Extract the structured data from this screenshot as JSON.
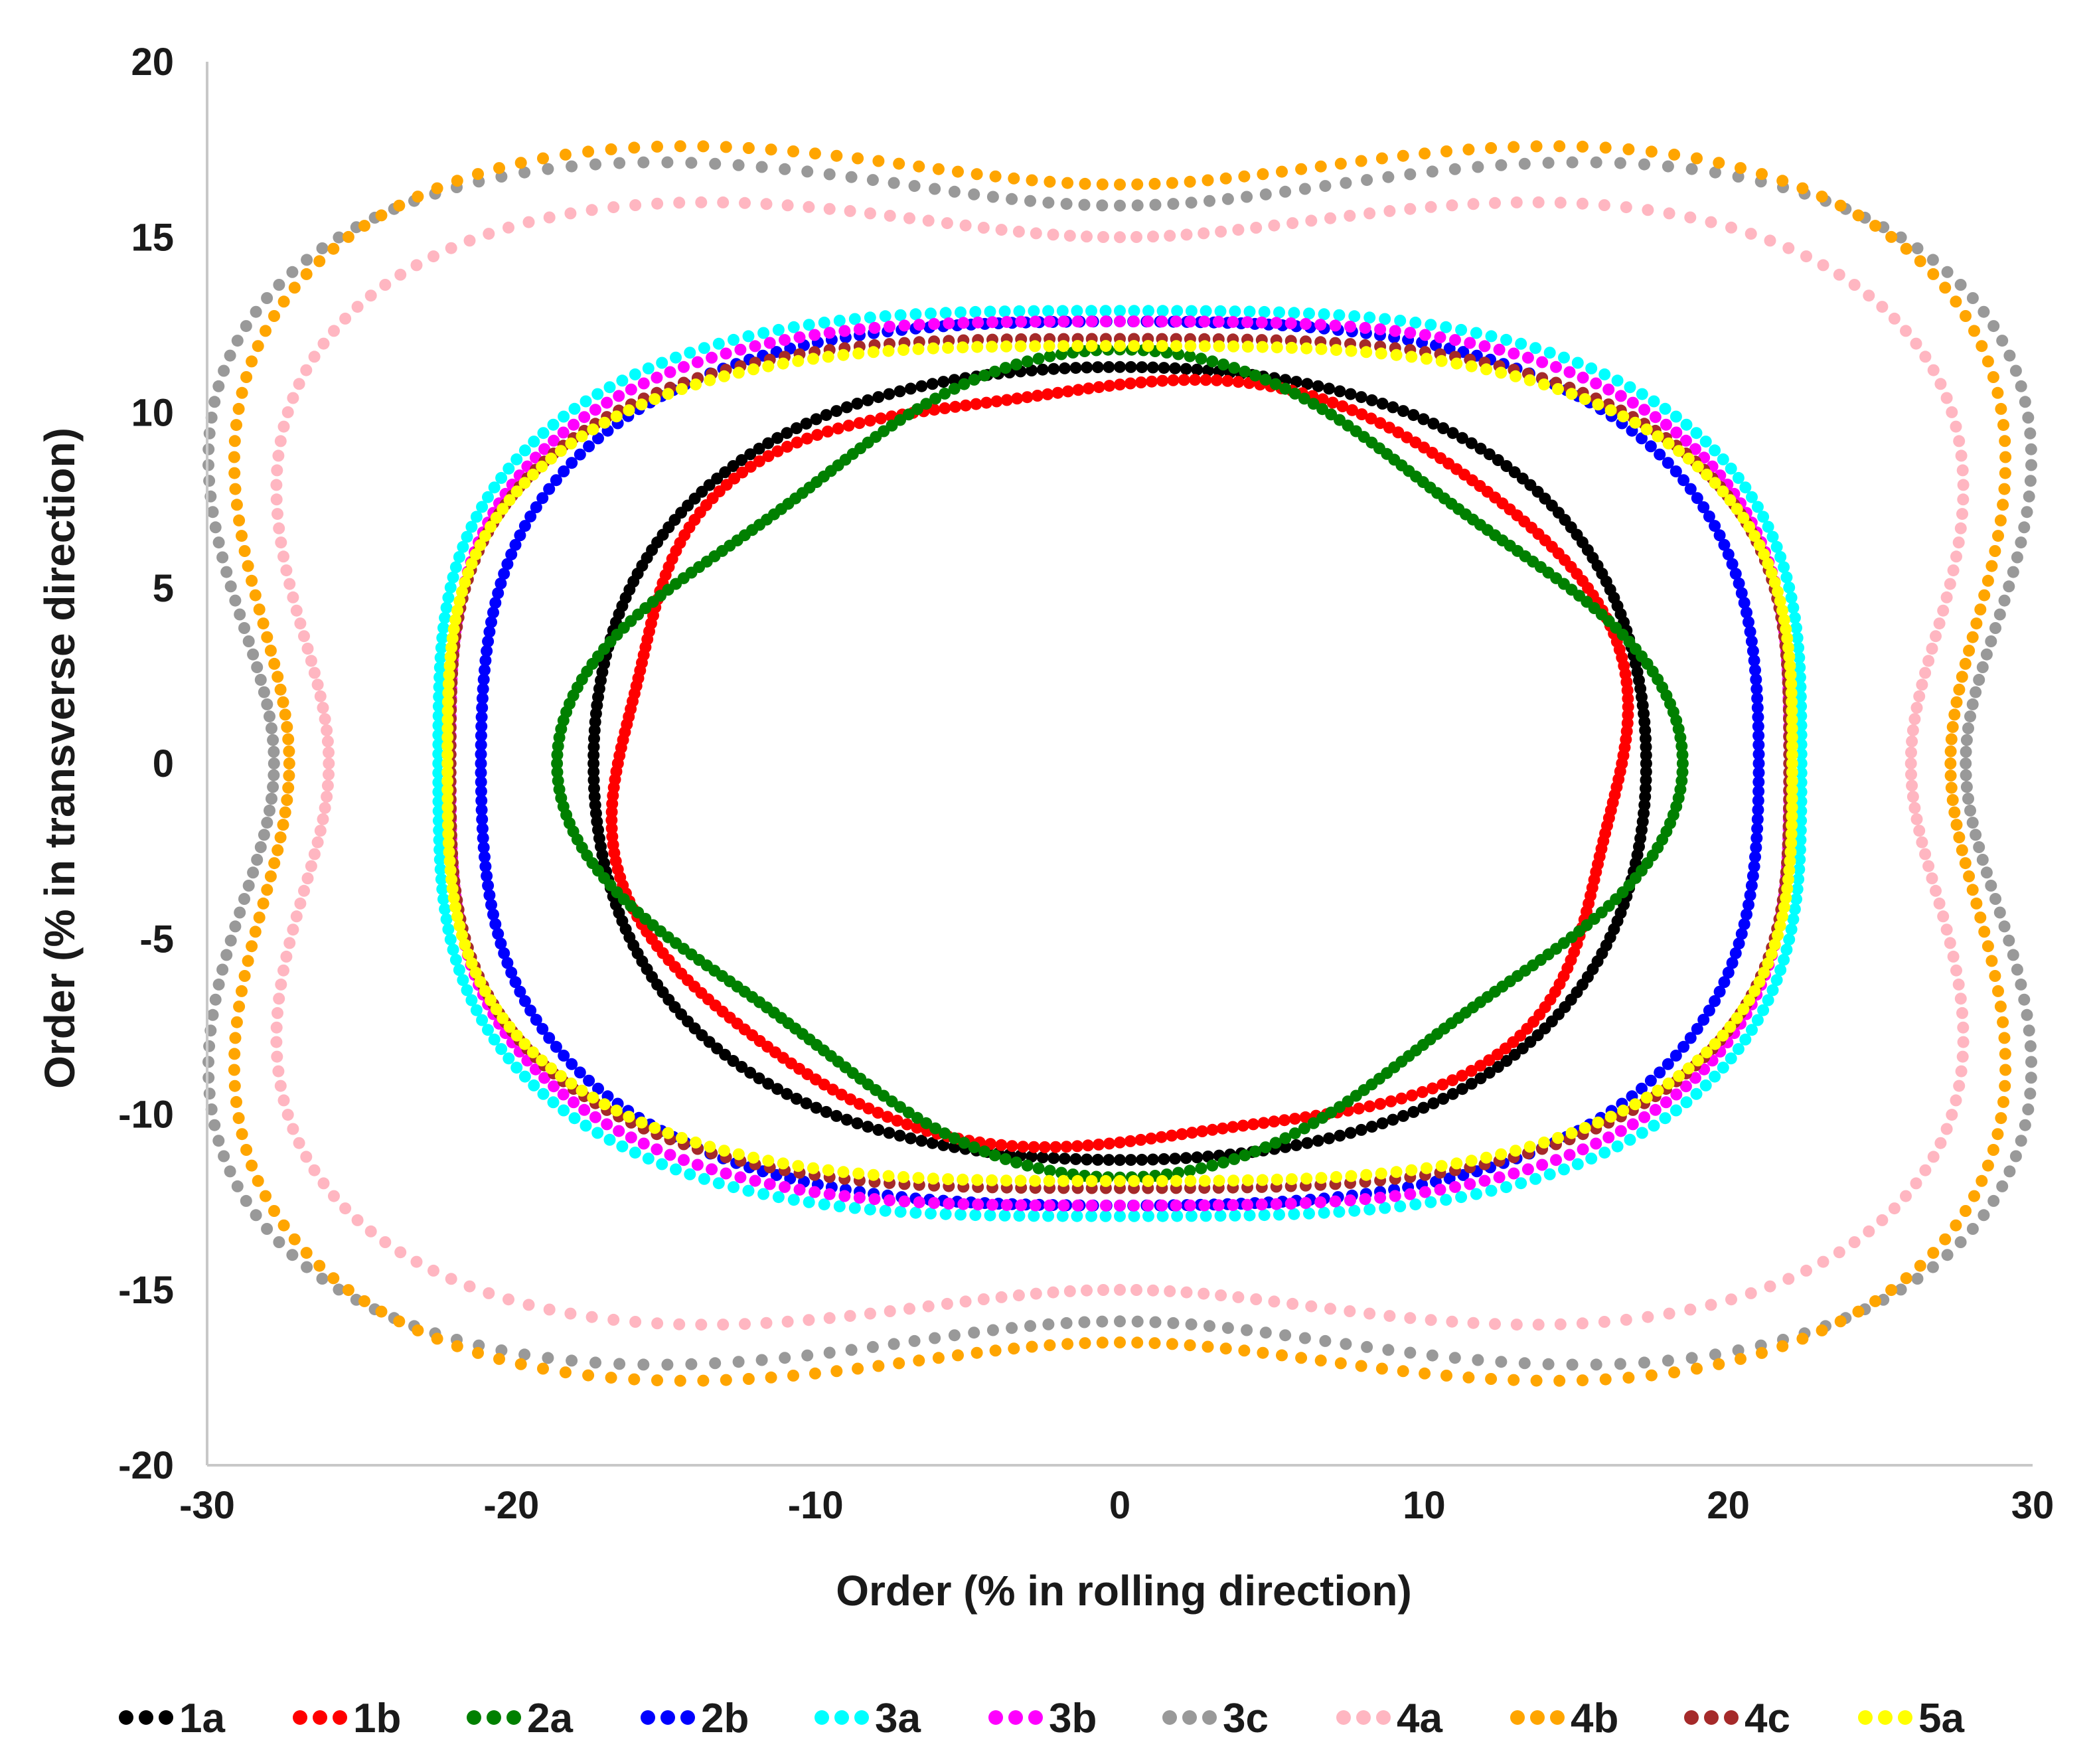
{
  "chart_data": {
    "type": "scatter",
    "title": "",
    "xlabel": "Order (% in rolling direction)",
    "ylabel": "Order (% in transverse direction)",
    "xlim": [
      -30,
      30
    ],
    "ylim": [
      -20,
      20
    ],
    "xticks": [
      -30,
      -20,
      -10,
      0,
      10,
      20,
      30
    ],
    "yticks": [
      -20,
      -15,
      -10,
      -5,
      0,
      5,
      10,
      15,
      20
    ],
    "xtick_labels": [
      "-30",
      "-20",
      "-10",
      "0",
      "10",
      "20",
      "30"
    ],
    "ytick_labels": [
      "-20",
      "-15",
      "-10",
      "-5",
      "0",
      "5",
      "10",
      "15",
      "20"
    ],
    "grid": false,
    "legend_position": "bottom",
    "marker": "small dots forming closed polar contours",
    "series": [
      {
        "name": "1a",
        "color": "#000000",
        "rx": 17.3,
        "ry": 11.3,
        "a4": 0.05
      },
      {
        "name": "1b",
        "color": "#ff0000",
        "rx": 16.5,
        "ry": 10.8,
        "a4": 0.05,
        "wobble": 0.025
      },
      {
        "name": "2a",
        "color": "#008000",
        "rx": 18.5,
        "ry": 11.8,
        "a4": -0.14
      },
      {
        "name": "2b",
        "color": "#0000ff",
        "rx": 21.0,
        "ry": 12.6,
        "a4": 0.1
      },
      {
        "name": "3a",
        "color": "#00ffff",
        "rx": 22.4,
        "ry": 12.9,
        "a4": 0.12
      },
      {
        "name": "3b",
        "color": "#ff00ff",
        "rx": 22.0,
        "ry": 12.6,
        "a4": 0.12
      },
      {
        "name": "3c",
        "color": "#999999",
        "rx": 27.8,
        "ry": 15.9,
        "a4": 0.32
      },
      {
        "name": "4a",
        "color": "#ffb6c1",
        "rx": 26.0,
        "ry": 15.0,
        "a4": 0.3
      },
      {
        "name": "4b",
        "color": "#ffa500",
        "rx": 27.3,
        "ry": 16.5,
        "a4": 0.3
      },
      {
        "name": "4c",
        "color": "#a52a2a",
        "rx": 22.0,
        "ry": 12.1,
        "a4": 0.12
      },
      {
        "name": "5a",
        "color": "#ffff00",
        "rx": 22.1,
        "ry": 11.9,
        "a4": 0.12
      }
    ]
  }
}
